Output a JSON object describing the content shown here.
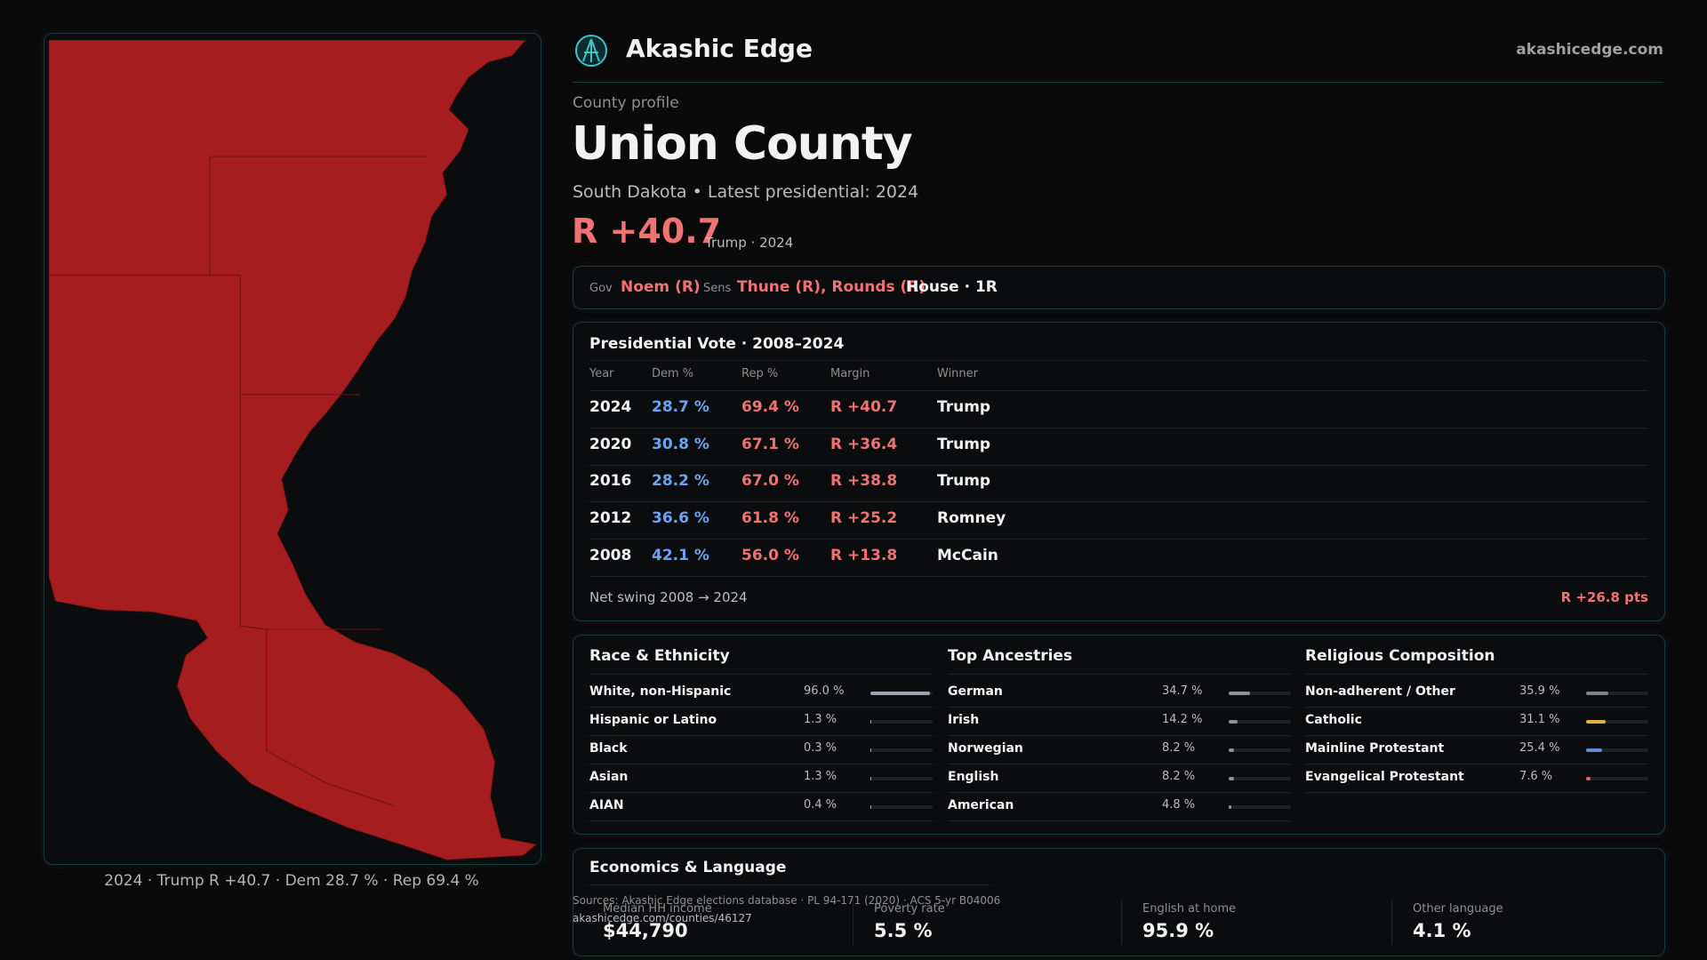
{
  "header": {
    "brand": "Akashic Edge",
    "domain": "akashicedge.com"
  },
  "profile": {
    "kicker": "County profile",
    "title": "Union County",
    "subtitle": "South Dakota • Latest presidential: 2024",
    "margin": "R +40.7",
    "margin_note": "Trump · 2024"
  },
  "officials": {
    "gov_label": "Gov",
    "gov": "Noem (R)",
    "sens_label": "Sens",
    "sens": "Thune (R), Rounds (R)",
    "house": "House · 1R"
  },
  "presidential": {
    "title": "Presidential Vote · 2008–2024",
    "columns": [
      "Year",
      "Dem %",
      "Rep %",
      "Margin",
      "Winner"
    ],
    "rows": [
      [
        "2024",
        "28.7 %",
        "69.4 %",
        "R +40.7",
        "Trump"
      ],
      [
        "2020",
        "30.8 %",
        "67.1 %",
        "R +36.4",
        "Trump"
      ],
      [
        "2016",
        "28.2 %",
        "67.0 %",
        "R +38.8",
        "Trump"
      ],
      [
        "2012",
        "36.6 %",
        "61.8 %",
        "R +25.2",
        "Romney"
      ],
      [
        "2008",
        "42.1 %",
        "56.0 %",
        "R +13.8",
        "McCain"
      ]
    ],
    "swing_label": "Net swing 2008 → 2024",
    "swing": "R +26.8 pts"
  },
  "demographics": [
    {
      "title": "Race & Ethnicity",
      "items": [
        {
          "label": "White, non-Hispanic",
          "value": 96.0,
          "value_label": "96.0 %",
          "color": "#9aa3ad"
        },
        {
          "label": "Hispanic or Latino",
          "value": 1.3,
          "value_label": "1.3 %",
          "color": "#9aa3ad"
        },
        {
          "label": "Black",
          "value": 0.3,
          "value_label": "0.3 %",
          "color": "#9aa3ad"
        },
        {
          "label": "Asian",
          "value": 1.3,
          "value_label": "1.3 %",
          "color": "#9aa3ad"
        },
        {
          "label": "AIAN",
          "value": 0.4,
          "value_label": "0.4 %",
          "color": "#9aa3ad"
        }
      ]
    },
    {
      "title": "Top Ancestries",
      "items": [
        {
          "label": "German",
          "value": 34.7,
          "value_label": "34.7 %",
          "color": "#8c9299"
        },
        {
          "label": "Irish",
          "value": 14.2,
          "value_label": "14.2 %",
          "color": "#8c9299"
        },
        {
          "label": "Norwegian",
          "value": 8.2,
          "value_label": "8.2 %",
          "color": "#8c9299"
        },
        {
          "label": "English",
          "value": 8.2,
          "value_label": "8.2 %",
          "color": "#8c9299"
        },
        {
          "label": "American",
          "value": 4.8,
          "value_label": "4.8 %",
          "color": "#8c9299"
        }
      ]
    },
    {
      "title": "Religious Composition",
      "items": [
        {
          "label": "Non-adherent / Other",
          "value": 35.9,
          "value_label": "35.9 %",
          "color": "#7d838a"
        },
        {
          "label": "Catholic",
          "value": 31.1,
          "value_label": "31.1 %",
          "color": "#e0b23a"
        },
        {
          "label": "Mainline Protestant",
          "value": 25.4,
          "value_label": "25.4 %",
          "color": "#5b8fd6"
        },
        {
          "label": "Evangelical Protestant",
          "value": 7.6,
          "value_label": "7.6 %",
          "color": "#e06666"
        }
      ]
    }
  ],
  "economics": {
    "title": "Economics & Language",
    "stats": [
      {
        "label": "Median HH income",
        "value": "$44,790"
      },
      {
        "label": "Poverty rate",
        "value": "5.5 %"
      },
      {
        "label": "English at home",
        "value": "95.9 %"
      },
      {
        "label": "Other language",
        "value": "4.1 %"
      }
    ]
  },
  "sources": "Sources: Akashic Edge elections database · PL 94-171 (2020) · ACS 5-yr B04006",
  "url": "akashicedge.com/counties/46127",
  "map_caption": "2024 · Trump R +40.7 · Dem 28.7 % · Rep 69.4 %"
}
